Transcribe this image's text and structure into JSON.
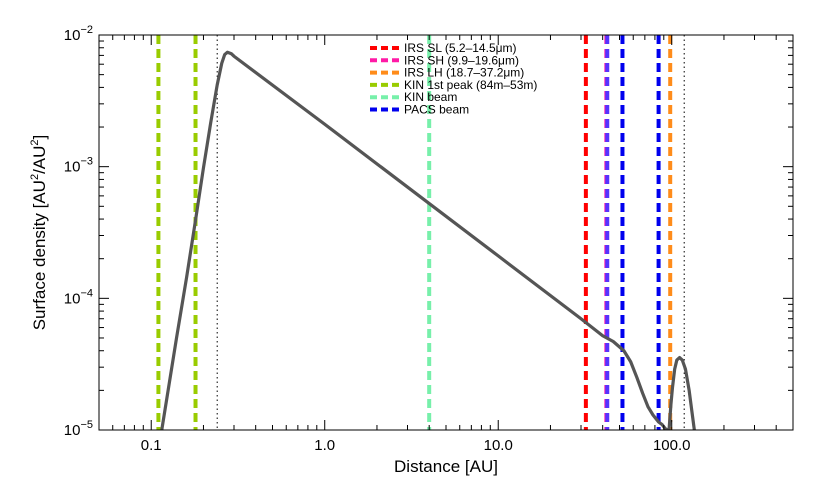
{
  "chart_data": {
    "type": "line",
    "xscale": "log",
    "yscale": "log",
    "xlim": [
      0.05,
      500
    ],
    "ylim": [
      1e-05,
      0.01
    ],
    "xlabel": "Distance [AU]",
    "ylabel_main": "Surface density [AU",
    "ylabel_sup1": "2",
    "ylabel_mid": "/AU",
    "ylabel_sup2": "2",
    "ylabel_end": "]",
    "x_ticks": [
      {
        "value": 0.1,
        "label": "0.1"
      },
      {
        "value": 1,
        "label": "1.0"
      },
      {
        "value": 10,
        "label": "10.0"
      },
      {
        "value": 100,
        "label": "100.0"
      }
    ],
    "y_ticks": [
      {
        "value": 1e-05,
        "base": "10",
        "exp": "−5"
      },
      {
        "value": 0.0001,
        "base": "10",
        "exp": "−4"
      },
      {
        "value": 0.001,
        "base": "10",
        "exp": "−3"
      },
      {
        "value": 0.01,
        "base": "10",
        "exp": "−2"
      }
    ],
    "series": [
      {
        "color": "#555555",
        "points": [
          [
            0.115,
            1e-05
          ],
          [
            0.14,
            5.03e-05
          ],
          [
            0.16,
            0.000145
          ],
          [
            0.18,
            0.000392
          ],
          [
            0.2,
            0.00098
          ],
          [
            0.22,
            0.00214
          ],
          [
            0.24,
            0.00418
          ],
          [
            0.255,
            0.0061
          ],
          [
            0.265,
            0.0071
          ],
          [
            0.275,
            0.0074
          ],
          [
            0.29,
            0.0072
          ],
          [
            0.3,
            0.0069
          ],
          [
            1,
            0.0021
          ],
          [
            3,
            0.0007
          ],
          [
            10,
            0.00021
          ],
          [
            30,
            7e-05
          ],
          [
            40,
            5.2e-05
          ],
          [
            46,
            4.7e-05
          ],
          [
            53,
            4e-05
          ],
          [
            58,
            3.3e-05
          ],
          [
            63,
            2.5e-05
          ],
          [
            68,
            1.9e-05
          ],
          [
            73,
            1.5e-05
          ],
          [
            78,
            1.3e-05
          ],
          [
            84,
            1.15e-05
          ],
          [
            88,
            1.1e-05
          ],
          [
            92,
            1.02e-05
          ],
          [
            95,
            1e-05
          ]
        ]
      },
      {
        "color": "#555555",
        "points": [
          [
            96.5,
            1e-05
          ],
          [
            99,
            1.58e-05
          ],
          [
            101,
            2.1e-05
          ],
          [
            104,
            2.9e-05
          ],
          [
            107,
            3.4e-05
          ],
          [
            111,
            3.55e-05
          ],
          [
            115,
            3.4e-05
          ],
          [
            120,
            2.9e-05
          ],
          [
            126,
            2e-05
          ],
          [
            131,
            1.35e-05
          ],
          [
            135,
            1e-05
          ]
        ]
      }
    ],
    "dotted_lines": [
      0.24,
      118
    ],
    "vertical_lines": [
      {
        "x": 0.11,
        "color": "#99cc00"
      },
      {
        "x": 0.18,
        "color": "#99cc00"
      },
      {
        "x": 4.0,
        "color": "#77f0aa"
      },
      {
        "x": 32,
        "color": "#ff0000"
      },
      {
        "x": 42,
        "color": "#ff1aa6"
      },
      {
        "x": 42.5,
        "color": "#5533ff"
      },
      {
        "x": 52,
        "color": "#0000ee"
      },
      {
        "x": 84,
        "color": "#0000ee"
      },
      {
        "x": 98,
        "color": "#ff8c1a"
      }
    ],
    "legend": [
      {
        "label": "IRS SL (5.2–14.5μm)",
        "color": "#ff0000"
      },
      {
        "label": "IRS SH (9.9–19.6μm)",
        "color": "#ff1aa6"
      },
      {
        "label": "IRS LH (18.7–37.2μm)",
        "color": "#ff8c1a"
      },
      {
        "label": "KIN 1st peak (84m–53m)",
        "color": "#99cc00"
      },
      {
        "label": "KIN beam",
        "color": "#77f0aa"
      },
      {
        "label": "PACS beam",
        "color": "#0000ee"
      }
    ],
    "legend_position": "top-center",
    "grid": false
  }
}
